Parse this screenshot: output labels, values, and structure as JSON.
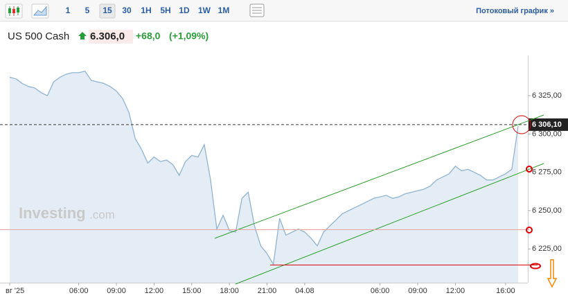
{
  "toolbar": {
    "intervals": [
      "1",
      "5",
      "15",
      "30",
      "1H",
      "5H",
      "1D",
      "1W",
      "1M"
    ],
    "active": "15",
    "streaming_link": "Потоковый график »"
  },
  "quote": {
    "name": "US 500 Cash",
    "price": "6.306,0",
    "change": "+68,0",
    "change_percent": "(+1,09%)"
  },
  "watermark": {
    "brand": "Investing",
    "suffix": ".com"
  },
  "chart_data": {
    "type": "area",
    "color": "#8fb3d0",
    "categories": [
      "вг '25",
      null,
      null,
      null,
      null,
      null,
      null,
      null,
      null,
      null,
      null,
      "06:00",
      null,
      null,
      null,
      null,
      null,
      "09:00",
      null,
      null,
      null,
      null,
      null,
      "12:00",
      null,
      null,
      null,
      null,
      null,
      "15:00",
      null,
      null,
      null,
      null,
      null,
      "18:00",
      null,
      null,
      null,
      null,
      null,
      "21:00",
      null,
      null,
      null,
      null,
      null,
      "04.08",
      null,
      null,
      null,
      null,
      null,
      null,
      null,
      null,
      null,
      null,
      null,
      "06:00",
      null,
      null,
      null,
      null,
      null,
      "09:00",
      null,
      null,
      null,
      null,
      null,
      "12:00",
      null,
      null,
      null,
      null,
      null,
      null,
      null,
      "16:00",
      null,
      null
    ],
    "values": [
      6337,
      6336,
      6333,
      6331,
      6330,
      6327,
      6325,
      6334,
      6337,
      6339,
      6340,
      6340,
      6341,
      6335,
      6334,
      6333,
      6331,
      6328,
      6323,
      6314,
      6297,
      6290,
      6281,
      6285,
      6282,
      6283,
      6280,
      6273,
      6282,
      6286,
      6285,
      6293,
      6270,
      6238,
      6247,
      6237,
      6236,
      6258,
      6262,
      6240,
      6227,
      6222,
      6215,
      6245,
      6234,
      6236,
      6238,
      6236,
      6232,
      6227,
      6236,
      6240,
      6244,
      6248,
      6250,
      6252,
      6254,
      6256,
      6258,
      6259,
      6260,
      6258,
      6259,
      6261,
      6262,
      6263,
      6264,
      6266,
      6270,
      6272,
      6274,
      6279,
      6276,
      6277,
      6275,
      6273,
      6270,
      6270,
      6272,
      6274,
      6277,
      6305
    ],
    "ylim": [
      6203,
      6349
    ],
    "yticks": [
      {
        "value": 6225,
        "label": "6 225,00"
      },
      {
        "value": 6250,
        "label": "6 250,00"
      },
      {
        "value": 6275,
        "label": "6 275,00"
      },
      {
        "value": 6300,
        "label": "6 300,00"
      },
      {
        "value": 6325,
        "label": "6 325,00"
      }
    ],
    "price_line": {
      "value": 6306.1,
      "label": "6 306,10"
    },
    "grid": false
  }
}
